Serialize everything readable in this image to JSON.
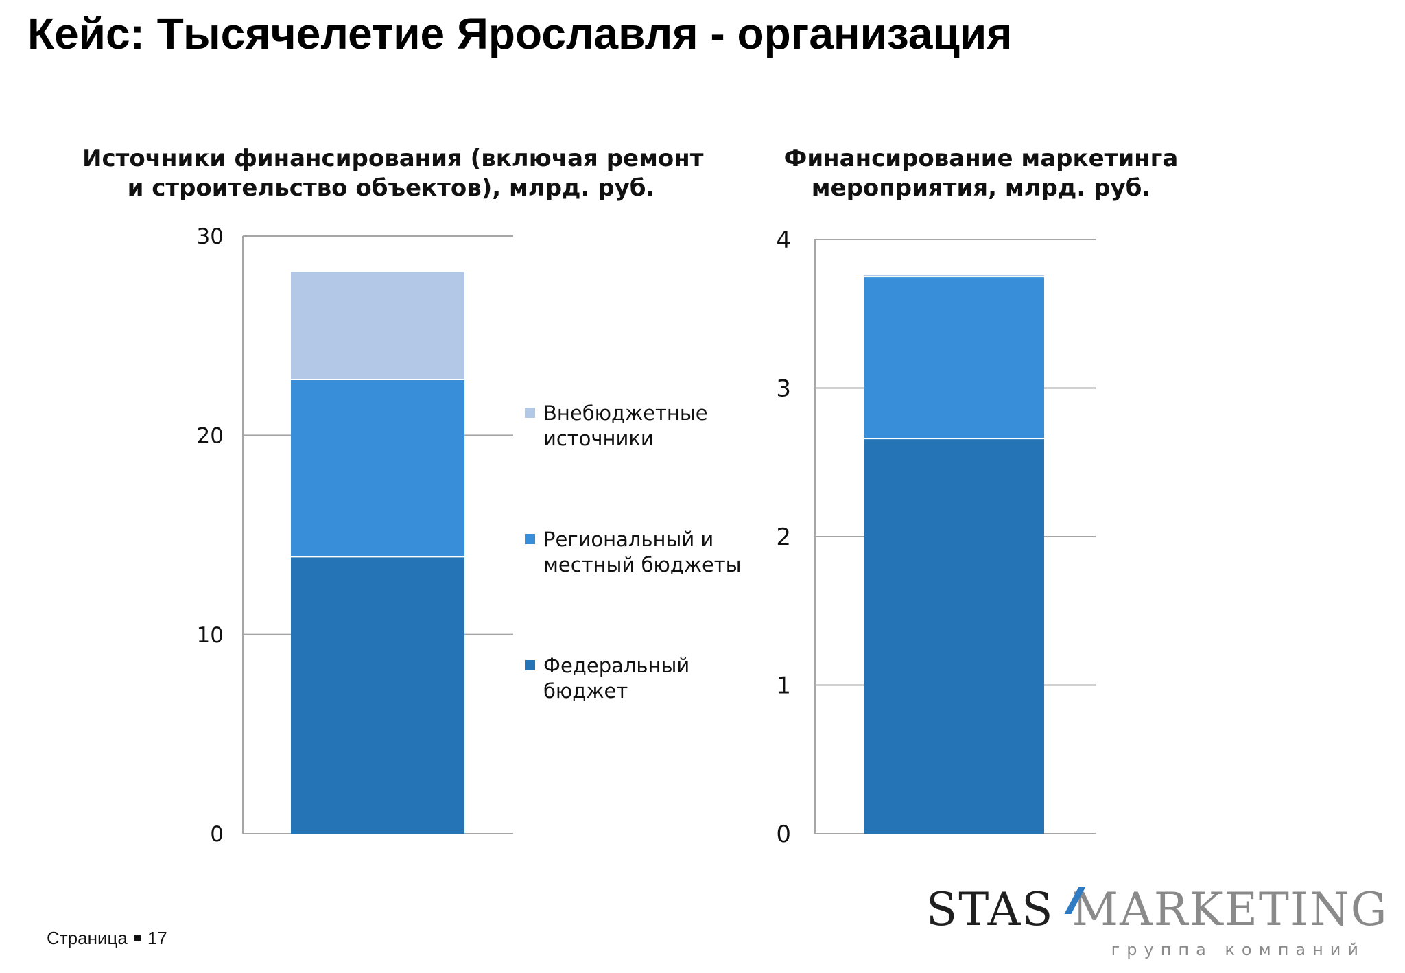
{
  "title": "Кейс: Тысячелетие Ярославля - организация",
  "legend": [
    {
      "label": "Внебюджетные источники",
      "color": "#b3c7e6"
    },
    {
      "label": "Региональный и местный бюджеты",
      "color": "#388ed8"
    },
    {
      "label": "Федеральный бюджет",
      "color": "#2574b5"
    }
  ],
  "chart_data": [
    {
      "type": "bar",
      "stacked": true,
      "title_lines": [
        "Источники финансирования (включая ремонт",
        "и строительство объектов), млрд. руб."
      ],
      "categories": [
        ""
      ],
      "ylim": [
        0,
        30
      ],
      "yticks": [
        "0",
        "10",
        "20",
        "30"
      ],
      "ytick_values": [
        0,
        10,
        20,
        30
      ],
      "grid": true,
      "legend_position": "right",
      "series": [
        {
          "name": "Федеральный бюджет",
          "values": [
            13.9
          ],
          "color": "#2574b5"
        },
        {
          "name": "Региональный и местный бюджеты",
          "values": [
            8.9
          ],
          "color": "#388ed8"
        },
        {
          "name": "Внебюджетные источники",
          "values": [
            5.4
          ],
          "color": "#b3c7e6"
        }
      ]
    },
    {
      "type": "bar",
      "stacked": true,
      "title_lines": [
        "Финансирование маркетинга",
        "мероприятия, млрд. руб."
      ],
      "categories": [
        ""
      ],
      "ylim": [
        0,
        4
      ],
      "yticks": [
        "0",
        "1",
        "2",
        "3",
        "4"
      ],
      "ytick_values": [
        0,
        1,
        2,
        3,
        4
      ],
      "grid": true,
      "series": [
        {
          "name": "Федеральный бюджет",
          "values": [
            2.66
          ],
          "color": "#2574b5"
        },
        {
          "name": "Региональный и местный бюджеты",
          "values": [
            1.09
          ],
          "color": "#388ed8"
        },
        {
          "name": "Внебюджетные источники",
          "values": [
            0.01
          ],
          "color": "#b3c7e6"
        }
      ]
    }
  ],
  "footer": {
    "page_label": "Страница",
    "page_number": "17"
  },
  "logo": {
    "brand_left": "STAS",
    "brand_right": "MARKETING",
    "tagline": "группа компаний"
  }
}
